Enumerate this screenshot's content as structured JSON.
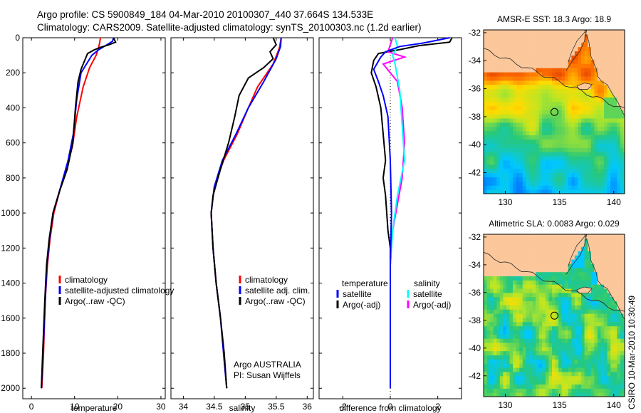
{
  "header": {
    "line1": "Argo profile: CS 5900849_184 04-Mar-2010 20100307_440 37.664S 134.533E",
    "line2": "Climatology: CARS2009. Satellite-adjusted climatology: synTS_20100303.nc (1.2d earlier)"
  },
  "side_label": "CSIRO 10-Mar-2010 10:30:49",
  "colors": {
    "climatology": "#ff0000",
    "satellite": "#0000ff",
    "argo": "#000000",
    "satellite_sal": "#00ffff",
    "argo_sal": "#ff00ff"
  },
  "chart_data": [
    {
      "type": "line",
      "xlabel": "temperature",
      "ylabel": "",
      "xlim": [
        -2,
        31
      ],
      "ylim": [
        0,
        2060
      ],
      "y_inverted": true,
      "xticks": [
        0,
        10,
        20,
        30
      ],
      "yticks": [
        0,
        200,
        400,
        600,
        800,
        1000,
        1200,
        1400,
        1600,
        1800,
        2000
      ],
      "legend": {
        "placement": "lower-right",
        "entries": [
          "climatology",
          "satellite-adjusted climatology",
          "Argo(..raw -QC)"
        ]
      },
      "series": [
        {
          "name": "climatology",
          "color": "#ff0000",
          "points": [
            [
              16,
              0
            ],
            [
              15.8,
              30
            ],
            [
              15.5,
              60
            ],
            [
              15,
              100
            ],
            [
              13.5,
              170
            ],
            [
              12,
              280
            ],
            [
              10.5,
              450
            ],
            [
              9.5,
              620
            ],
            [
              8,
              750
            ],
            [
              6.8,
              850
            ],
            [
              5.2,
              1000
            ],
            [
              4.3,
              1150
            ],
            [
              3.7,
              1300
            ],
            [
              3.2,
              1500
            ],
            [
              2.8,
              1800
            ],
            [
              2.4,
              2000
            ]
          ]
        },
        {
          "name": "satellite-adjusted climatology",
          "color": "#0000ff",
          "points": [
            [
              19,
              0
            ],
            [
              18.8,
              20
            ],
            [
              17.5,
              40
            ],
            [
              15.5,
              70
            ],
            [
              14,
              100
            ],
            [
              11.5,
              200
            ],
            [
              10.5,
              350
            ],
            [
              9.7,
              550
            ],
            [
              8.5,
              700
            ],
            [
              6.8,
              850
            ],
            [
              5,
              1000
            ],
            [
              4.2,
              1150
            ],
            [
              3.6,
              1300
            ],
            [
              3.2,
              1500
            ],
            [
              2.7,
              1800
            ],
            [
              2.3,
              2000
            ]
          ]
        },
        {
          "name": "Argo(..raw -QC)",
          "color": "#000000",
          "points": [
            [
              19,
              0
            ],
            [
              19.3,
              15
            ],
            [
              19.5,
              25
            ],
            [
              18,
              40
            ],
            [
              16,
              55
            ],
            [
              14.5,
              70
            ],
            [
              13,
              90
            ],
            [
              12.5,
              120
            ],
            [
              11.5,
              180
            ],
            [
              10.8,
              250
            ],
            [
              10.2,
              400
            ],
            [
              9.6,
              600
            ],
            [
              8.3,
              750
            ],
            [
              6.6,
              870
            ],
            [
              5,
              1000
            ],
            [
              4.1,
              1150
            ],
            [
              3.5,
              1300
            ],
            [
              3.1,
              1500
            ],
            [
              2.6,
              1800
            ],
            [
              2.3,
              2000
            ]
          ]
        }
      ]
    },
    {
      "type": "line",
      "xlabel": "salinity",
      "ylabel": "",
      "xlim": [
        33.8,
        36.1
      ],
      "ylim": [
        0,
        2060
      ],
      "y_inverted": true,
      "xticks": [
        34,
        34.5,
        35,
        35.5,
        36
      ],
      "yticks": [
        0,
        200,
        400,
        600,
        800,
        1000,
        1200,
        1400,
        1600,
        1800,
        2000
      ],
      "legend": {
        "placement": "lower-right",
        "entries": [
          "climatology",
          "satellite adj. clim.",
          "Argo(..raw -QC)"
        ]
      },
      "annotations": [
        "Argo AUSTRALIA",
        "PI: Susan Wijffels"
      ],
      "series": [
        {
          "name": "climatology",
          "color": "#ff0000",
          "points": [
            [
              35.58,
              0
            ],
            [
              35.55,
              60
            ],
            [
              35.45,
              150
            ],
            [
              35.2,
              280
            ],
            [
              35.05,
              400
            ],
            [
              34.87,
              550
            ],
            [
              34.65,
              700
            ],
            [
              34.5,
              850
            ],
            [
              34.45,
              1000
            ],
            [
              34.48,
              1200
            ],
            [
              34.53,
              1400
            ],
            [
              34.6,
              1600
            ],
            [
              34.65,
              1800
            ],
            [
              34.7,
              2000
            ]
          ]
        },
        {
          "name": "satellite adj. clim.",
          "color": "#0000ff",
          "points": [
            [
              35.58,
              0
            ],
            [
              35.57,
              50
            ],
            [
              35.5,
              120
            ],
            [
              35.3,
              250
            ],
            [
              35.05,
              400
            ],
            [
              34.85,
              550
            ],
            [
              34.63,
              700
            ],
            [
              34.5,
              850
            ],
            [
              34.45,
              1000
            ],
            [
              34.48,
              1200
            ],
            [
              34.53,
              1400
            ],
            [
              34.6,
              1600
            ],
            [
              34.65,
              1800
            ],
            [
              34.7,
              2000
            ]
          ]
        },
        {
          "name": "Argo(..raw -QC)",
          "color": "#000000",
          "points": [
            [
              35.45,
              0
            ],
            [
              35.5,
              40
            ],
            [
              35.4,
              80
            ],
            [
              35.45,
              120
            ],
            [
              35.3,
              170
            ],
            [
              35.05,
              230
            ],
            [
              34.9,
              330
            ],
            [
              34.83,
              450
            ],
            [
              34.73,
              600
            ],
            [
              34.6,
              750
            ],
            [
              34.48,
              900
            ],
            [
              34.45,
              1000
            ],
            [
              34.48,
              1200
            ],
            [
              34.53,
              1400
            ],
            [
              34.6,
              1600
            ],
            [
              34.66,
              1800
            ],
            [
              34.7,
              2000
            ]
          ]
        }
      ]
    },
    {
      "type": "line",
      "xlabel": "difference from climatology",
      "ylabel": "",
      "xlim": [
        -3,
        3
      ],
      "ylim": [
        0,
        2060
      ],
      "y_inverted": true,
      "xticks": [
        -2,
        0,
        2
      ],
      "yticks": [
        0,
        200,
        400,
        600,
        800,
        1000,
        1200,
        1400,
        1600,
        1800,
        2000
      ],
      "legend": {
        "placement": "lower-center",
        "columns": [
          {
            "title": "temperature",
            "entries": [
              "satellite",
              "Argo(-adj)"
            ]
          },
          {
            "title": "salinity",
            "entries": [
              "satellite",
              "Argo(-adj)"
            ]
          }
        ]
      },
      "series": [
        {
          "name": "satellite",
          "group": "temperature",
          "color": "#0000ff",
          "points": [
            [
              2.5,
              0
            ],
            [
              1.4,
              30
            ],
            [
              0.4,
              50
            ],
            [
              -0.2,
              80
            ],
            [
              -0.4,
              110
            ],
            [
              -0.7,
              180
            ],
            [
              -0.5,
              250
            ],
            [
              -0.3,
              330
            ],
            [
              -0.1,
              450
            ],
            [
              0,
              700
            ],
            [
              0.05,
              1000
            ],
            [
              0,
              1300
            ],
            [
              0,
              1600
            ],
            [
              0,
              2000
            ]
          ]
        },
        {
          "name": "Argo(-adj)",
          "group": "temperature",
          "color": "#000000",
          "points": [
            [
              2.6,
              0
            ],
            [
              2.5,
              25
            ],
            [
              1.2,
              45
            ],
            [
              0.5,
              65
            ],
            [
              -0.5,
              90
            ],
            [
              -0.7,
              130
            ],
            [
              -0.8,
              200
            ],
            [
              -0.6,
              280
            ],
            [
              -0.4,
              400
            ],
            [
              -0.3,
              550
            ],
            [
              -0.2,
              700
            ],
            [
              -0.3,
              800
            ],
            [
              -0.2,
              900
            ],
            [
              -0.1,
              1100
            ],
            [
              0,
              1200
            ],
            [
              0,
              1500
            ],
            [
              0,
              2000
            ]
          ]
        },
        {
          "name": "satellite",
          "group": "salinity",
          "color": "#00ffff",
          "points": [
            [
              0.2,
              0
            ],
            [
              0.3,
              50
            ],
            [
              0.1,
              100
            ],
            [
              0.2,
              150
            ],
            [
              0.4,
              300
            ],
            [
              0.5,
              500
            ],
            [
              0.6,
              700
            ],
            [
              0.3,
              900
            ],
            [
              0.1,
              1100
            ],
            [
              0,
              1300
            ],
            [
              0,
              1600
            ],
            [
              0,
              2000
            ]
          ]
        },
        {
          "name": "Argo(-adj)",
          "group": "salinity",
          "color": "#ff00ff",
          "points": [
            [
              0.1,
              0
            ],
            [
              -0.1,
              80
            ],
            [
              0.6,
              110
            ],
            [
              -0.3,
              150
            ],
            [
              0.3,
              250
            ],
            [
              0.5,
              400
            ],
            [
              0.6,
              600
            ],
            [
              0.5,
              800
            ],
            [
              0.3,
              950
            ],
            [
              0.1,
              1100
            ],
            [
              0,
              1300
            ],
            [
              0,
              1600
            ],
            [
              0,
              2000
            ]
          ]
        }
      ]
    },
    {
      "type": "heatmap",
      "title": "AMSR-E SST: 18.3 Argo: 18.9",
      "xlim": [
        128,
        141
      ],
      "ylim": [
        -43.5,
        -31.8
      ],
      "xticks": [
        130,
        135,
        140
      ],
      "yticks": [
        -32,
        -34,
        -36,
        -38,
        -40,
        -42
      ],
      "marker": {
        "lon": 134.533,
        "lat": -37.664
      }
    },
    {
      "type": "heatmap",
      "title": "Altimetric SLA: 0.0083 Argo: 0.029",
      "xlim": [
        128,
        141
      ],
      "ylim": [
        -43.5,
        -31.8
      ],
      "xticks": [
        130,
        135,
        140
      ],
      "yticks": [
        -32,
        -34,
        -36,
        -38,
        -40,
        -42
      ],
      "marker": {
        "lon": 134.533,
        "lat": -37.664
      }
    }
  ]
}
